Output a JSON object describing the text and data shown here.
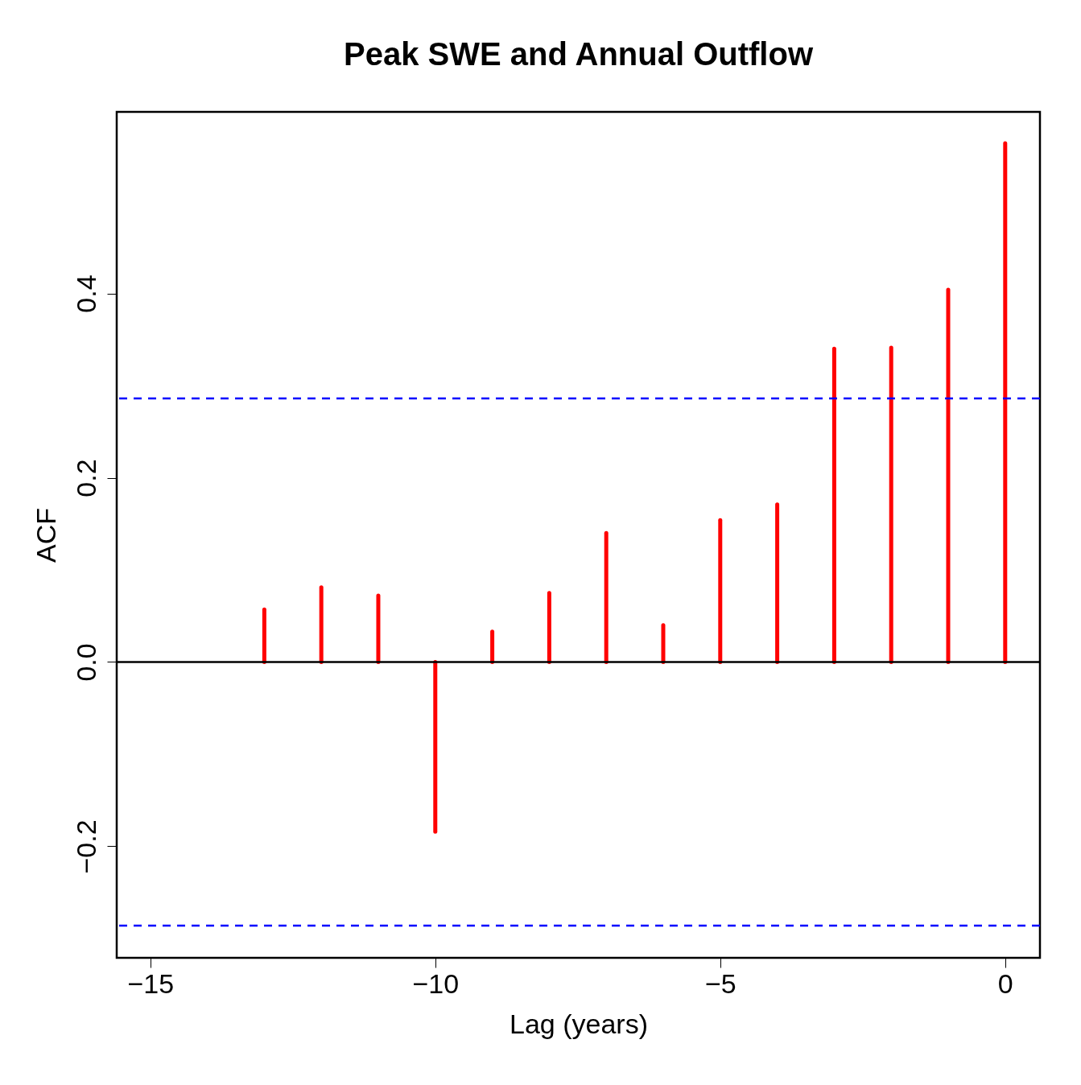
{
  "chart_data": {
    "type": "bar",
    "title": "Peak SWE and Annual Outflow",
    "xlabel": "Lag (years)",
    "ylabel": "ACF",
    "x": [
      -13,
      -12,
      -11,
      -10,
      -9,
      -8,
      -7,
      -6,
      -5,
      -4,
      -3,
      -2,
      -1,
      0
    ],
    "series": [
      {
        "color": "#ff0000",
        "values": [
          0.057,
          0.081,
          0.072,
          -0.184,
          0.033,
          0.075,
          0.14,
          0.04,
          0.154,
          0.171,
          0.34,
          0.341,
          0.404,
          0.563
        ]
      }
    ],
    "xlim": [
      -15.59,
      0.61
    ],
    "ylim": [
      -0.321,
      0.597
    ],
    "xticks": [
      -15,
      -10,
      -5,
      0
    ],
    "yticks": [
      -0.2,
      {
        "value": 0,
        "label": "0.0"
      },
      0.2,
      0.4
    ],
    "ref_lines": [
      {
        "axis": "y",
        "value": 0,
        "color": "#000000",
        "line_style": "solid"
      },
      {
        "axis": "y",
        "value": 0.286,
        "color": "#0000ff",
        "line_style": "dashed"
      },
      {
        "axis": "y",
        "value": -0.286,
        "color": "#0000ff",
        "line_style": "dashed"
      }
    ],
    "grid": false
  }
}
